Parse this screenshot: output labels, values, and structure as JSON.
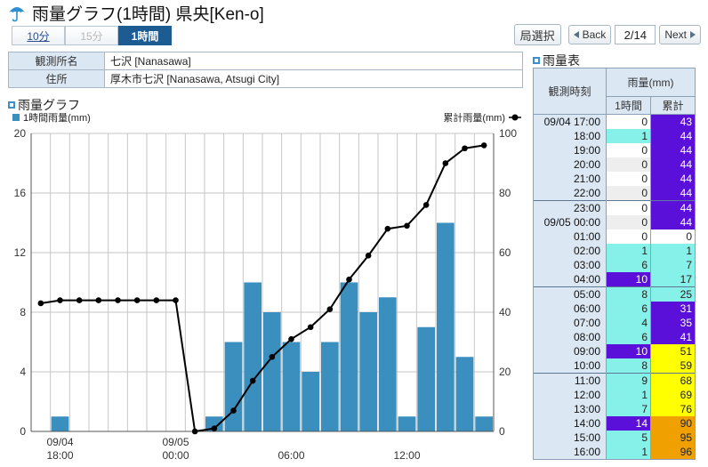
{
  "header": {
    "title": "雨量グラフ(1時間) 県央[Ken-o]"
  },
  "range_tabs": [
    {
      "label": "10分",
      "state": "link"
    },
    {
      "label": "15分",
      "state": "dim"
    },
    {
      "label": "1時間",
      "state": "active"
    }
  ],
  "nav": {
    "week_label": "局選択",
    "back_label": "Back",
    "page": "2/14",
    "next_label": "Next"
  },
  "station": {
    "name_label": "観測所名",
    "name_value": "七沢 [Nanasawa]",
    "address_label": "住所",
    "address_value": "厚木市七沢 [Nanasawa, Atsugi City]"
  },
  "chart_section": {
    "heading": "雨量グラフ"
  },
  "table_section": {
    "heading": "雨量表"
  },
  "colors": {
    "bar": "#3a8fbf",
    "line": "#000000",
    "grid": "#c6c6c6",
    "cell_white": "#ffffff",
    "cell_light": "#eeeeee",
    "cell_cyan": "#86f1e8",
    "cell_blue": "#5a10d8",
    "cell_yellow": "#ffff00",
    "cell_orange": "#f0a000"
  },
  "chart_data": {
    "type": "bar+line",
    "legend_left": "1時間雨量(mm)",
    "legend_right": "累計雨量(mm)",
    "y_left": {
      "min": 0,
      "max": 20,
      "ticks": [
        0,
        4,
        8,
        12,
        16,
        20
      ]
    },
    "y_right": {
      "min": 0,
      "max": 100,
      "ticks": [
        0,
        20,
        40,
        60,
        80,
        100
      ]
    },
    "x_tick_labels": [
      {
        "date": "09/04",
        "time": "18:00",
        "index": 1
      },
      {
        "date": "09/05",
        "time": "00:00",
        "index": 7
      },
      {
        "date": "",
        "time": "06:00",
        "index": 13
      },
      {
        "date": "",
        "time": "12:00",
        "index": 19
      }
    ],
    "hours": [
      "09/04 17:00",
      "18:00",
      "19:00",
      "20:00",
      "21:00",
      "22:00",
      "23:00",
      "09/05 00:00",
      "01:00",
      "02:00",
      "03:00",
      "04:00",
      "05:00",
      "06:00",
      "07:00",
      "08:00",
      "09:00",
      "10:00",
      "11:00",
      "12:00",
      "13:00",
      "14:00",
      "15:00",
      "16:00"
    ],
    "hourly_rain": [
      0,
      1,
      0,
      0,
      0,
      0,
      0,
      0,
      0,
      1,
      6,
      10,
      8,
      6,
      4,
      6,
      10,
      8,
      9,
      1,
      7,
      14,
      5,
      1
    ],
    "cumulative": [
      43,
      44,
      44,
      44,
      44,
      44,
      44,
      44,
      0,
      1,
      7,
      17,
      25,
      31,
      35,
      41,
      51,
      59,
      68,
      69,
      76,
      90,
      95,
      96
    ]
  },
  "table": {
    "header_time": "観測時刻",
    "header_rain": "雨量(mm)",
    "header_hour": "1時間",
    "header_cum": "累計",
    "rows": [
      {
        "time": "09/04 17:00",
        "hour": "0",
        "cum": "43",
        "hc": "white",
        "cc": "blue"
      },
      {
        "time": "18:00",
        "hour": "1",
        "cum": "44",
        "hc": "cyan",
        "cc": "blue"
      },
      {
        "time": "19:00",
        "hour": "0",
        "cum": "44",
        "hc": "white",
        "cc": "blue"
      },
      {
        "time": "20:00",
        "hour": "0",
        "cum": "44",
        "hc": "light",
        "cc": "blue"
      },
      {
        "time": "21:00",
        "hour": "0",
        "cum": "44",
        "hc": "white",
        "cc": "blue"
      },
      {
        "time": "22:00",
        "hour": "0",
        "cum": "44",
        "hc": "light",
        "cc": "blue"
      },
      {
        "time": "23:00",
        "hour": "0",
        "cum": "44",
        "hc": "white",
        "cc": "blue"
      },
      {
        "time": "09/05 00:00",
        "hour": "0",
        "cum": "44",
        "hc": "light",
        "cc": "blue"
      },
      {
        "time": "01:00",
        "hour": "0",
        "cum": "0",
        "hc": "white",
        "cc": "white"
      },
      {
        "time": "02:00",
        "hour": "1",
        "cum": "1",
        "hc": "cyan",
        "cc": "cyan"
      },
      {
        "time": "03:00",
        "hour": "6",
        "cum": "7",
        "hc": "cyan",
        "cc": "cyan"
      },
      {
        "time": "04:00",
        "hour": "10",
        "cum": "17",
        "hc": "blue",
        "cc": "cyan"
      },
      {
        "time": "05:00",
        "hour": "8",
        "cum": "25",
        "hc": "cyan",
        "cc": "cyan"
      },
      {
        "time": "06:00",
        "hour": "6",
        "cum": "31",
        "hc": "cyan",
        "cc": "blue"
      },
      {
        "time": "07:00",
        "hour": "4",
        "cum": "35",
        "hc": "cyan",
        "cc": "blue"
      },
      {
        "time": "08:00",
        "hour": "6",
        "cum": "41",
        "hc": "cyan",
        "cc": "blue"
      },
      {
        "time": "09:00",
        "hour": "10",
        "cum": "51",
        "hc": "blue",
        "cc": "yellow"
      },
      {
        "time": "10:00",
        "hour": "8",
        "cum": "59",
        "hc": "cyan",
        "cc": "yellow"
      },
      {
        "time": "11:00",
        "hour": "9",
        "cum": "68",
        "hc": "cyan",
        "cc": "yellow"
      },
      {
        "time": "12:00",
        "hour": "1",
        "cum": "69",
        "hc": "cyan",
        "cc": "yellow"
      },
      {
        "time": "13:00",
        "hour": "7",
        "cum": "76",
        "hc": "cyan",
        "cc": "yellow"
      },
      {
        "time": "14:00",
        "hour": "14",
        "cum": "90",
        "hc": "blue",
        "cc": "orange"
      },
      {
        "time": "15:00",
        "hour": "5",
        "cum": "95",
        "hc": "cyan",
        "cc": "orange"
      },
      {
        "time": "16:00",
        "hour": "1",
        "cum": "96",
        "hc": "cyan",
        "cc": "orange"
      }
    ]
  }
}
